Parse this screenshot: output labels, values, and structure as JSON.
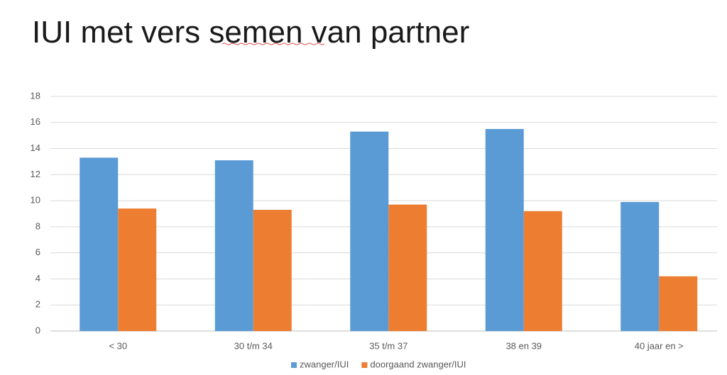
{
  "chart_data": {
    "type": "bar",
    "title": "IUI met vers semen van partner",
    "categories": [
      "< 30",
      "30 t/m 34",
      "35 t/m 37",
      "38 en 39",
      "40 jaar en >"
    ],
    "series": [
      {
        "name": "zwanger/IUI",
        "color": "#5b9bd5",
        "values": [
          13.3,
          13.1,
          15.3,
          15.5,
          9.9
        ]
      },
      {
        "name": "doorgaand zwanger/IUI",
        "color": "#ed7d31",
        "values": [
          9.4,
          9.3,
          9.7,
          9.2,
          4.2
        ]
      }
    ],
    "ylim": [
      0,
      18
    ],
    "yticks": [
      0,
      2,
      4,
      6,
      8,
      10,
      12,
      14,
      16,
      18
    ],
    "grid": true,
    "legend": "bottom"
  }
}
